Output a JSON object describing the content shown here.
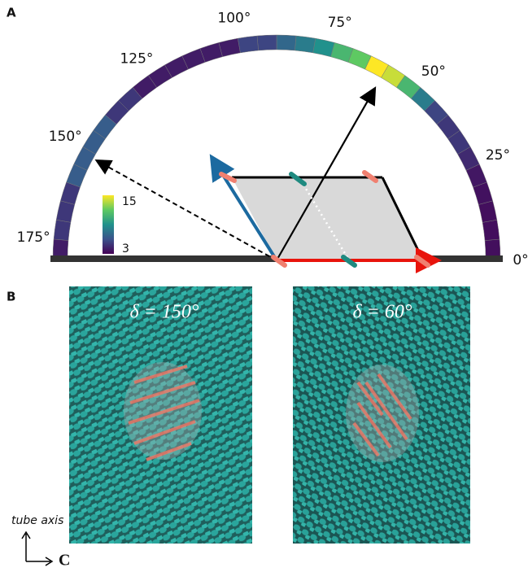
{
  "panel_a": {
    "label": "A",
    "angle_ticks": [
      {
        "value": 0,
        "label": "0°"
      },
      {
        "value": 25,
        "label": "25°"
      },
      {
        "value": 50,
        "label": "50°"
      },
      {
        "value": 75,
        "label": "75°"
      },
      {
        "value": 100,
        "label": "100°"
      },
      {
        "value": 125,
        "label": "125°"
      },
      {
        "value": 150,
        "label": "150°"
      },
      {
        "value": 175,
        "label": "175°"
      }
    ],
    "ring_values": [
      3.5,
      3.5,
      3.5,
      3.6,
      3.8,
      4.5,
      5,
      5,
      5.5,
      8,
      11,
      14,
      15,
      12,
      11,
      9,
      8,
      7,
      5.5,
      5.5,
      4,
      4,
      4,
      4,
      4,
      4,
      5,
      5,
      6.5,
      6.5,
      6.5,
      6.5,
      5,
      5,
      5,
      4
    ],
    "colorbar": {
      "ticks": [
        3,
        15
      ]
    }
  },
  "panel_b": {
    "label": "B",
    "left_label": "δ = 150°",
    "right_label": "δ = 60°",
    "axis_label": "tube axis",
    "axis_end": "C"
  }
}
